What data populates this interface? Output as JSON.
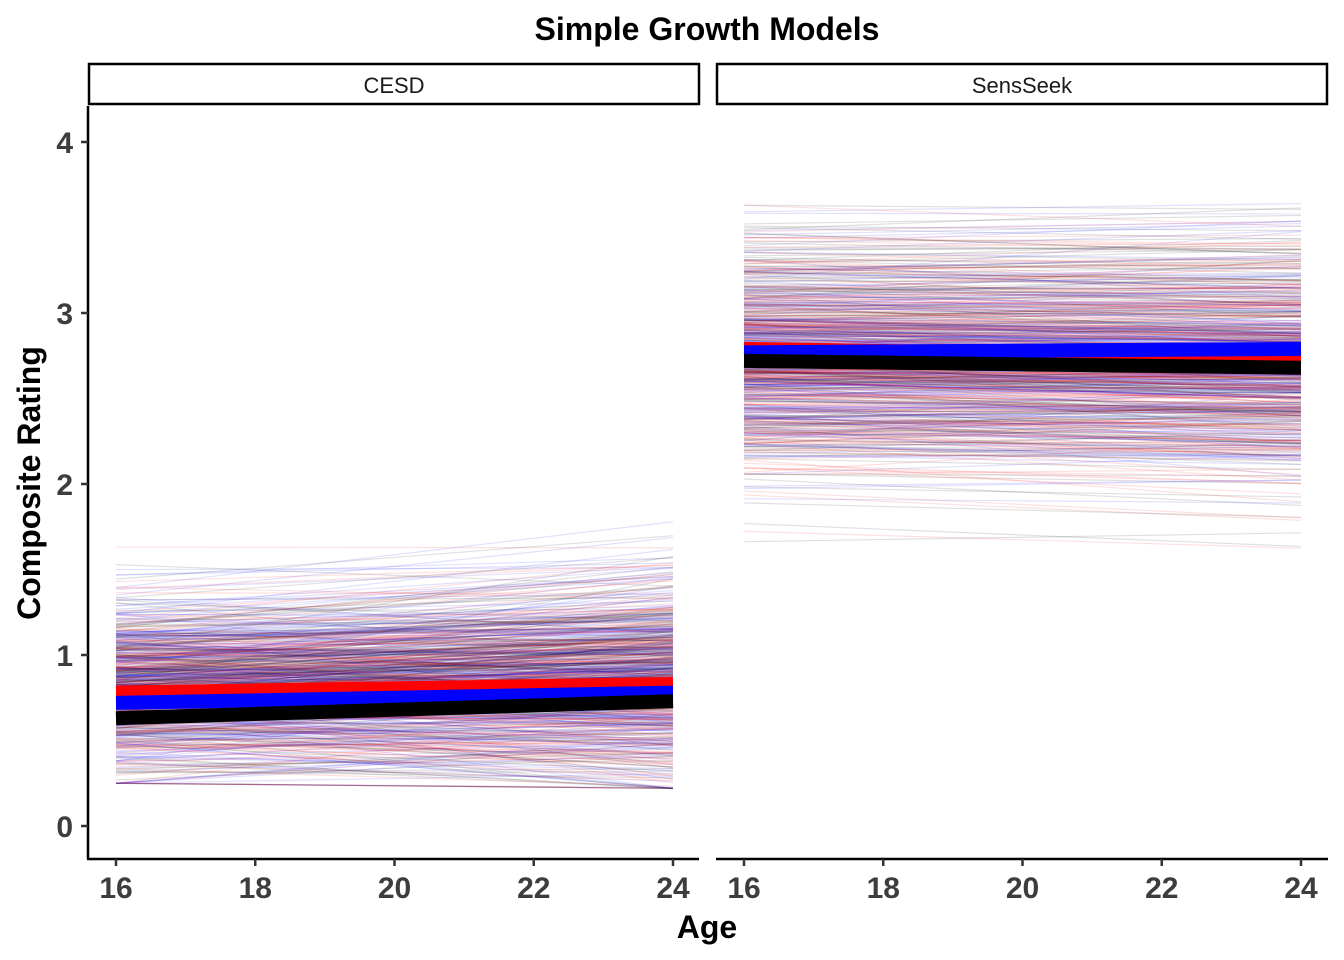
{
  "chart_data": {
    "type": "line",
    "title": "Simple Growth Models",
    "xlabel": "Age",
    "ylabel": "Composite Rating",
    "xlim": [
      16,
      24
    ],
    "ylim": [
      0,
      4
    ],
    "x_ticks": [
      16,
      18,
      20,
      22,
      24
    ],
    "y_ticks": [
      0,
      1,
      2,
      3,
      4
    ],
    "grid": false,
    "legend": "none",
    "colors": {
      "individual_red": "#ff0000",
      "individual_blue": "#0000ff",
      "individual_black": "#000000",
      "mean_red": "#ff0000",
      "mean_blue": "#0000ff",
      "mean_black": "#000000"
    },
    "facets": [
      {
        "label": "CESD",
        "x": [
          16,
          24
        ],
        "mean_lines": [
          {
            "color": "red",
            "values": [
              0.78,
              0.83
            ]
          },
          {
            "color": "blue",
            "values": [
              0.72,
              0.78
            ]
          },
          {
            "color": "black",
            "values": [
              0.63,
              0.73
            ]
          }
        ],
        "individual_range_at_16": [
          0.25,
          1.7
        ],
        "individual_range_at_24": [
          0.22,
          1.92
        ]
      },
      {
        "label": "SensSeek",
        "x": [
          16,
          24
        ],
        "mean_lines": [
          {
            "color": "red",
            "values": [
              2.79,
              2.74
            ]
          },
          {
            "color": "blue",
            "values": [
              2.77,
              2.79
            ]
          },
          {
            "color": "black",
            "values": [
              2.72,
              2.68
            ]
          }
        ],
        "individual_range_at_16": [
          1.64,
          3.63
        ],
        "individual_range_at_24": [
          1.53,
          3.64
        ]
      }
    ]
  }
}
